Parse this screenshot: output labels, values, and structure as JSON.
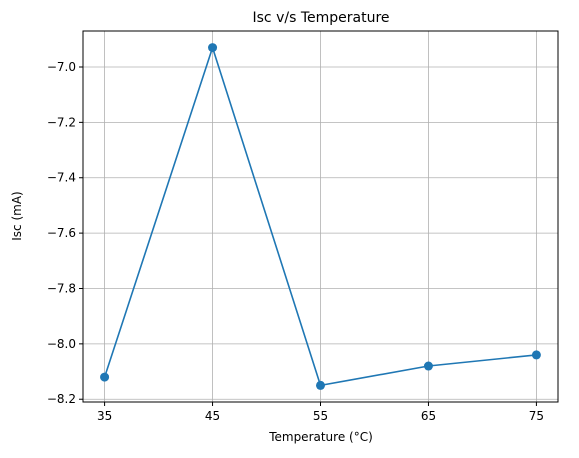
{
  "chart_data": {
    "type": "line",
    "title": "Isc v/s Temperature",
    "xlabel": "Temperature (°C)",
    "ylabel": "Isc (mA)",
    "x": [
      35,
      45,
      55,
      65,
      75
    ],
    "series": [
      {
        "values": [
          -8.12,
          -6.93,
          -8.15,
          -8.08,
          -8.04
        ],
        "color": "#1f77b4",
        "marker": "circle"
      }
    ],
    "xticks": [
      "35",
      "45",
      "55",
      "65",
      "75"
    ],
    "yticks": [
      "−7.0",
      "−7.2",
      "−7.4",
      "−7.6",
      "−7.8",
      "−8.0",
      "−8.2"
    ],
    "ytick_values": [
      -7.0,
      -7.2,
      -7.4,
      -7.6,
      -7.8,
      -8.0,
      -8.2
    ],
    "xlim": [
      33,
      77
    ],
    "ylim": [
      -8.21,
      -6.87
    ],
    "grid": true,
    "legend": "none"
  }
}
